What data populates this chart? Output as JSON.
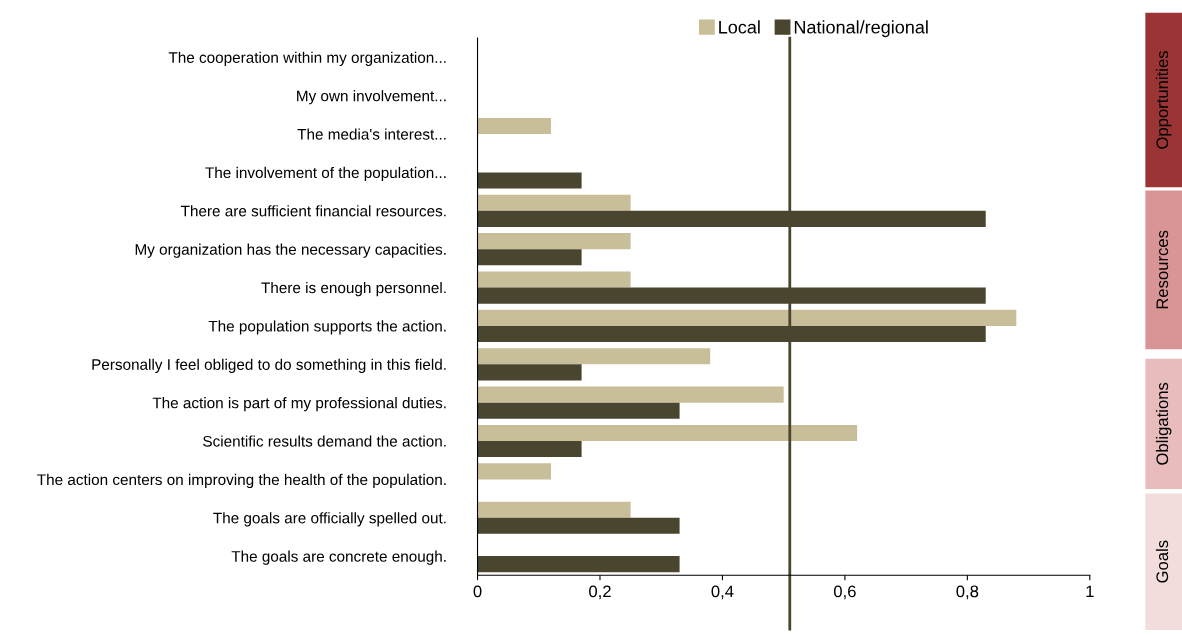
{
  "chart_data": {
    "type": "bar",
    "orientation": "horizontal",
    "categories": [
      "The cooperation within my organization...",
      "My own involvement...",
      "The media's interest...",
      "The involvement of the population...",
      "There are sufficient financial resources.",
      "My organization has the necessary capacities.",
      "There is enough personnel.",
      "The population supports the action.",
      "Personally I feel obliged to do something in this field.",
      "The action is part of my professional duties.",
      "Scientific results demand the action.",
      "The action centers on improving the health of the population.",
      "The goals are officially spelled out.",
      "The goals are concrete enough."
    ],
    "series": [
      {
        "name": "Local",
        "color": "#c8be9a",
        "values": [
          0,
          0,
          0.12,
          0,
          0.25,
          0.25,
          0.25,
          0.88,
          0.38,
          0.5,
          0.62,
          0.12,
          0.25,
          0
        ]
      },
      {
        "name": "National/regional",
        "color": "#4a452e",
        "values": [
          0,
          0,
          0,
          0.17,
          0.83,
          0.17,
          0.83,
          0.83,
          0.17,
          0.33,
          0.17,
          0,
          0.33,
          0.33
        ]
      }
    ],
    "xlim": [
      0,
      1
    ],
    "xticks": [
      0,
      {
        "value": 0.2,
        "label": "0,2"
      },
      {
        "value": 0.4,
        "label": "0,4"
      },
      {
        "value": 0.6,
        "label": "0,6"
      },
      {
        "value": 0.8,
        "label": "0,8"
      },
      1
    ],
    "ref_lines": [
      {
        "axis": "x",
        "value": 0.51,
        "color": "#4a452e"
      }
    ],
    "annotations": [
      "Opportunities",
      "Resources",
      "Obligations",
      "Goals"
    ],
    "grid": false,
    "legend": "top"
  }
}
